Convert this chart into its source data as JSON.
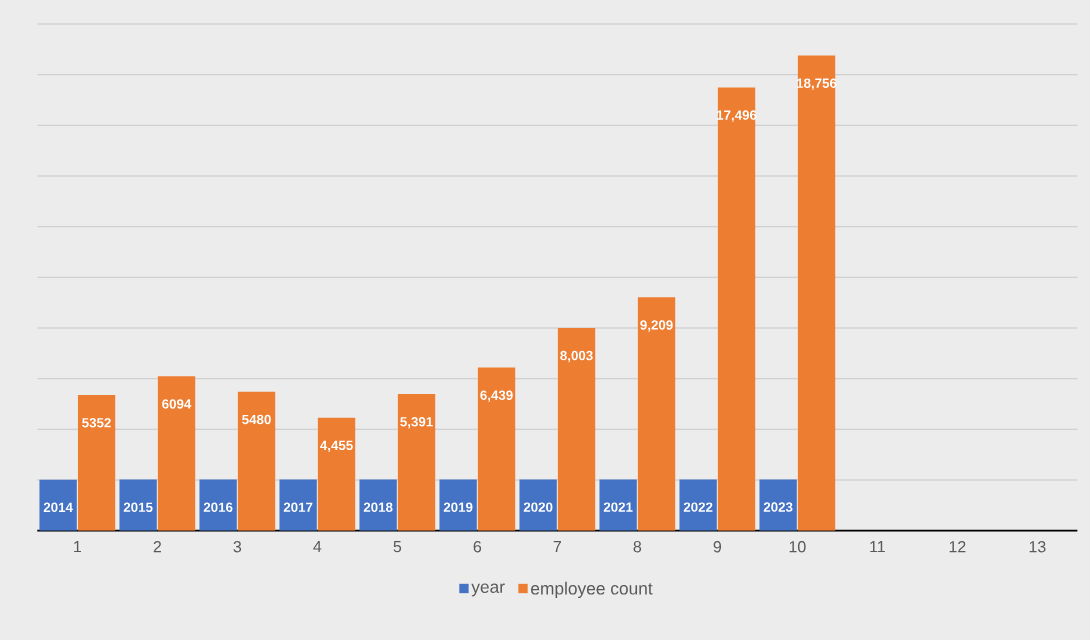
{
  "chart_data": {
    "type": "bar",
    "categories": [
      "1",
      "2",
      "3",
      "4",
      "5",
      "6",
      "7",
      "8",
      "9",
      "10",
      "11",
      "12",
      "13"
    ],
    "series": [
      {
        "name": "year",
        "color": "#4472c4",
        "values": [
          2014,
          2015,
          2016,
          2017,
          2018,
          2019,
          2020,
          2021,
          2022,
          2023,
          null,
          null,
          null
        ]
      },
      {
        "name": "employee count",
        "color": "#ed7d31",
        "values": [
          5352,
          6094,
          5480,
          4455,
          5391,
          6439,
          8003,
          9209,
          17496,
          18756,
          null,
          null,
          null
        ],
        "value_labels": [
          "5352",
          "6094",
          "5480",
          "4,455",
          "5,391",
          "6,439",
          "8,003",
          "9,209",
          "17,496",
          "18,756",
          null,
          null,
          null
        ]
      }
    ],
    "data_labels": true,
    "ylim": [
      0,
      20000
    ],
    "yticks": [
      {
        "value": 0,
        "label": null
      },
      {
        "value": 2000,
        "label": null
      },
      {
        "value": 4000,
        "label": null
      },
      {
        "value": 6000,
        "label": null
      },
      {
        "value": 8000,
        "label": null
      },
      {
        "value": 10000,
        "label": null
      },
      {
        "value": 12000,
        "label": null
      },
      {
        "value": 14000,
        "label": null
      },
      {
        "value": 16000,
        "label": null
      },
      {
        "value": 18000,
        "label": null
      },
      {
        "value": 20000,
        "label": null
      }
    ],
    "tick_labels": "x",
    "grid": "y",
    "legend": "bottom"
  }
}
